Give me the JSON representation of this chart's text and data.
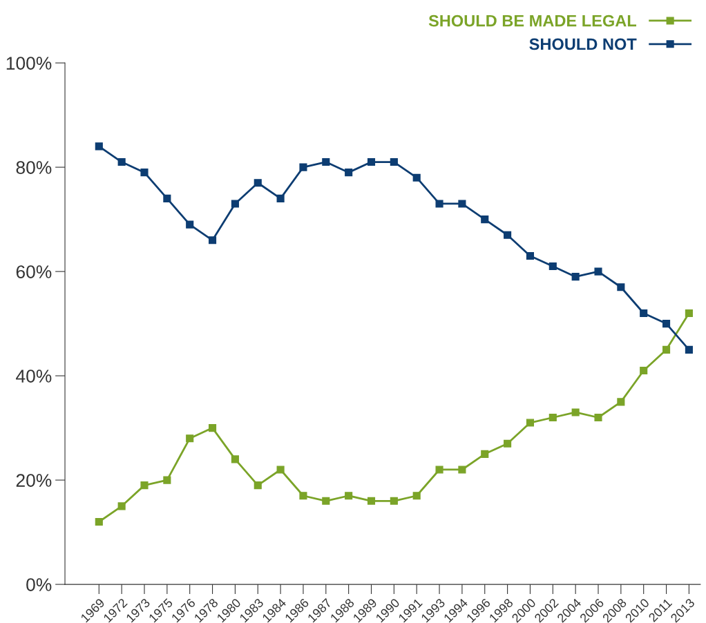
{
  "chart_data": {
    "type": "line",
    "categories": [
      "1969",
      "1972",
      "1973",
      "1975",
      "1976",
      "1978",
      "1980",
      "1983",
      "1984",
      "1986",
      "1987",
      "1988",
      "1989",
      "1990",
      "1991",
      "1993",
      "1994",
      "1996",
      "1998",
      "2000",
      "2002",
      "2004",
      "2006",
      "2008",
      "2010",
      "2011",
      "2013"
    ],
    "series": [
      {
        "name": "SHOULD BE MADE LEGAL",
        "color": "#7ba428",
        "values": [
          12,
          15,
          19,
          20,
          28,
          30,
          24,
          19,
          22,
          17,
          16,
          17,
          16,
          16,
          17,
          22,
          22,
          25,
          27,
          31,
          32,
          33,
          32,
          35,
          41,
          45,
          52
        ]
      },
      {
        "name": "SHOULD NOT",
        "color": "#0d3d72",
        "values": [
          84,
          81,
          79,
          74,
          69,
          66,
          73,
          77,
          74,
          80,
          81,
          79,
          81,
          81,
          78,
          73,
          73,
          70,
          67,
          63,
          61,
          59,
          60,
          57,
          52,
          50,
          45
        ]
      }
    ],
    "ylim": [
      0,
      100
    ],
    "yticks": [
      {
        "value": 0,
        "label": "0%"
      },
      {
        "value": 20,
        "label": "20%"
      },
      {
        "value": 40,
        "label": "40%"
      },
      {
        "value": 60,
        "label": "60%"
      },
      {
        "value": 80,
        "label": "80%"
      },
      {
        "value": 100,
        "label": "100%"
      }
    ],
    "marker": "square",
    "line_style": "solid",
    "grid": false,
    "legend": "top right"
  }
}
